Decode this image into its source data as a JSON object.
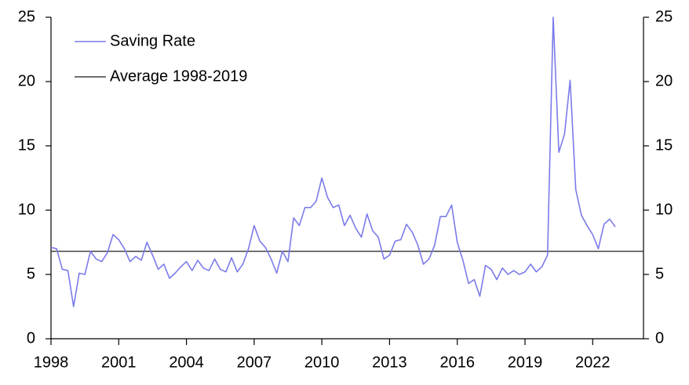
{
  "chart_data": {
    "type": "line",
    "x": [
      1998,
      1998.25,
      1998.5,
      1998.75,
      1999,
      1999.25,
      1999.5,
      1999.75,
      2000,
      2000.25,
      2000.5,
      2000.75,
      2001,
      2001.25,
      2001.5,
      2001.75,
      2002,
      2002.25,
      2002.5,
      2002.75,
      2003,
      2003.25,
      2003.5,
      2003.75,
      2004,
      2004.25,
      2004.5,
      2004.75,
      2005,
      2005.25,
      2005.5,
      2005.75,
      2006,
      2006.25,
      2006.5,
      2006.75,
      2007,
      2007.25,
      2007.5,
      2007.75,
      2008,
      2008.25,
      2008.5,
      2008.75,
      2009,
      2009.25,
      2009.5,
      2009.75,
      2010,
      2010.25,
      2010.5,
      2010.75,
      2011,
      2011.25,
      2011.5,
      2011.75,
      2012,
      2012.25,
      2012.5,
      2012.75,
      2013,
      2013.25,
      2013.5,
      2013.75,
      2014,
      2014.25,
      2014.5,
      2014.75,
      2015,
      2015.25,
      2015.5,
      2015.75,
      2016,
      2016.25,
      2016.5,
      2016.75,
      2017,
      2017.25,
      2017.5,
      2017.75,
      2018,
      2018.25,
      2018.5,
      2018.75,
      2019,
      2019.25,
      2019.5,
      2019.75,
      2020,
      2020.25,
      2020.5,
      2020.75,
      2021,
      2021.25,
      2021.5,
      2021.75,
      2022,
      2022.25,
      2022.5,
      2022.75,
      2023
    ],
    "series": [
      {
        "name": "Saving Rate",
        "color": "#7b7bea",
        "values": [
          7.1,
          7.0,
          5.4,
          5.3,
          2.5,
          5.1,
          5.0,
          6.8,
          6.2,
          6.0,
          6.7,
          8.1,
          7.7,
          7.0,
          6.0,
          6.4,
          6.1,
          7.5,
          6.5,
          5.4,
          5.8,
          4.7,
          5.1,
          5.6,
          6.0,
          5.3,
          6.1,
          5.5,
          5.3,
          6.2,
          5.4,
          5.2,
          6.3,
          5.2,
          5.8,
          7.0,
          8.8,
          7.6,
          7.1,
          6.2,
          5.1,
          6.8,
          6.0,
          9.4,
          8.8,
          10.2,
          10.2,
          10.7,
          12.5,
          11.0,
          10.2,
          10.4,
          8.8,
          9.6,
          8.6,
          7.9,
          9.7,
          8.4,
          7.9,
          6.2,
          6.5,
          7.6,
          7.7,
          8.9,
          8.3,
          7.3,
          5.8,
          6.2,
          7.3,
          9.5,
          9.5,
          10.4,
          7.5,
          6.1,
          4.3,
          4.6,
          3.3,
          5.7,
          5.4,
          4.6,
          5.5,
          5.0,
          5.3,
          5.0,
          5.2,
          5.8,
          5.2,
          5.6,
          6.5,
          25,
          14.5,
          15.9,
          20.1,
          11.6,
          9.6,
          8.8,
          8.1,
          7.0,
          8.9,
          9.3,
          8.7
        ]
      }
    ],
    "reference_line": {
      "name": "Average 1998-2019",
      "value": 6.8,
      "color": "#404040"
    },
    "xlim": [
      1998,
      2024.25
    ],
    "xticks": [
      1998,
      2001,
      2004,
      2007,
      2010,
      2013,
      2016,
      2019,
      2022
    ],
    "ylim": [
      0,
      25
    ],
    "yticks": [
      0,
      5,
      10,
      15,
      20,
      25
    ],
    "y2lim": [
      0,
      25
    ],
    "y2ticks": [
      0,
      5,
      10,
      15,
      20,
      25
    ],
    "legend": "upper left"
  }
}
